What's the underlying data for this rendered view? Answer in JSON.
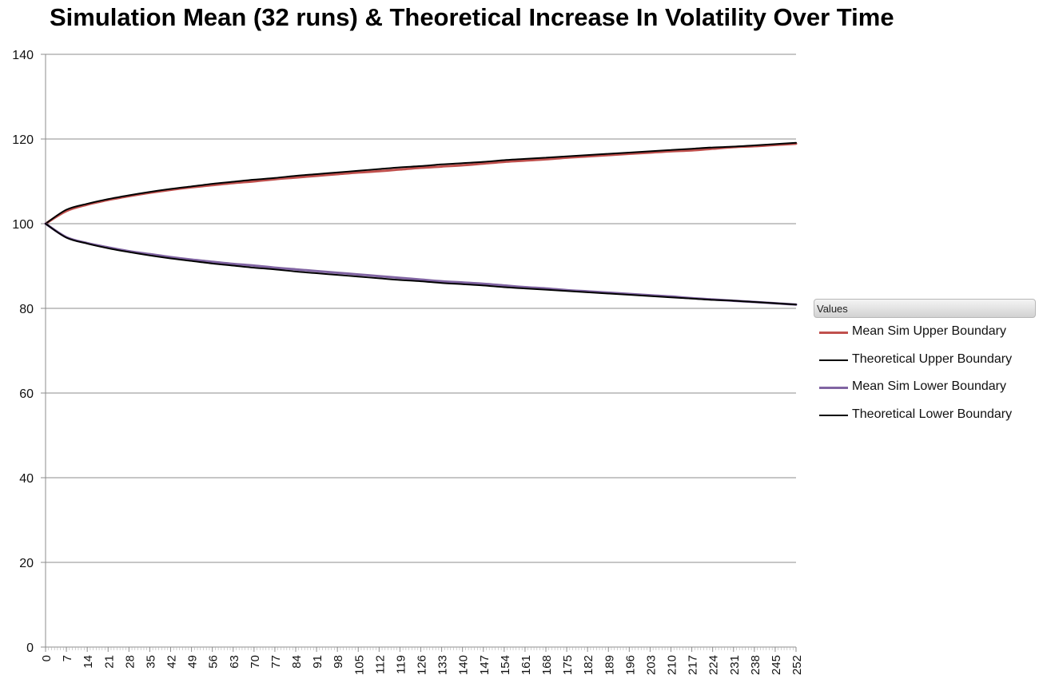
{
  "chart_data": {
    "type": "line",
    "title": "Simulation Mean (32 runs) & Theoretical Increase In Volatility Over Time",
    "xlabel": "",
    "ylabel": "",
    "ylim": [
      0,
      140
    ],
    "yticks": [
      0,
      20,
      40,
      60,
      80,
      100,
      120,
      140
    ],
    "xlim": [
      0,
      252
    ],
    "xticks": [
      0,
      7,
      14,
      21,
      28,
      35,
      42,
      49,
      56,
      63,
      70,
      77,
      84,
      91,
      98,
      105,
      112,
      119,
      126,
      133,
      140,
      147,
      154,
      161,
      168,
      175,
      182,
      189,
      196,
      203,
      210,
      217,
      224,
      231,
      238,
      245,
      252
    ],
    "grid": "horizontal",
    "legend_title": "Values",
    "legend_position": "right",
    "x": [
      0,
      7,
      14,
      21,
      28,
      35,
      42,
      49,
      56,
      63,
      70,
      77,
      84,
      91,
      98,
      105,
      112,
      119,
      126,
      133,
      140,
      147,
      154,
      161,
      168,
      175,
      182,
      189,
      196,
      203,
      210,
      217,
      224,
      231,
      238,
      245,
      252
    ],
    "series": [
      {
        "name": "Mean Sim Upper Boundary",
        "color": "#c0504d",
        "width": 3,
        "values": [
          100,
          103.0,
          104.5,
          105.6,
          106.5,
          107.3,
          108.0,
          108.6,
          109.1,
          109.6,
          110.0,
          110.5,
          110.9,
          111.3,
          111.7,
          112.1,
          112.4,
          112.8,
          113.2,
          113.5,
          113.8,
          114.2,
          114.6,
          114.9,
          115.2,
          115.6,
          115.9,
          116.2,
          116.5,
          116.8,
          117.1,
          117.3,
          117.7,
          118.1,
          118.3,
          118.6,
          118.9
        ]
      },
      {
        "name": "Theoretical Upper Boundary",
        "color": "#000000",
        "width": 2,
        "values": [
          100,
          103.3,
          104.7,
          105.8,
          106.7,
          107.5,
          108.2,
          108.8,
          109.4,
          109.9,
          110.4,
          110.8,
          111.3,
          111.7,
          112.1,
          112.5,
          112.9,
          113.3,
          113.6,
          114.0,
          114.3,
          114.6,
          115.0,
          115.3,
          115.6,
          115.9,
          116.2,
          116.5,
          116.8,
          117.1,
          117.4,
          117.7,
          118.0,
          118.2,
          118.5,
          118.8,
          119.1
        ]
      },
      {
        "name": "Mean Sim Lower Boundary",
        "color": "#8064a2",
        "width": 3,
        "values": [
          100,
          96.8,
          95.4,
          94.4,
          93.5,
          92.8,
          92.1,
          91.5,
          91.0,
          90.5,
          90.1,
          89.6,
          89.2,
          88.8,
          88.4,
          88.0,
          87.6,
          87.2,
          86.8,
          86.4,
          86.1,
          85.8,
          85.4,
          85.0,
          84.7,
          84.3,
          84.0,
          83.7,
          83.4,
          83.1,
          82.8,
          82.4,
          82.1,
          81.8,
          81.5,
          81.2,
          80.9
        ]
      },
      {
        "name": "Theoretical Lower Boundary",
        "color": "#000000",
        "width": 2,
        "values": [
          100,
          96.7,
          95.3,
          94.2,
          93.3,
          92.5,
          91.8,
          91.2,
          90.6,
          90.1,
          89.6,
          89.2,
          88.7,
          88.3,
          87.9,
          87.5,
          87.1,
          86.7,
          86.4,
          86.0,
          85.7,
          85.4,
          85.0,
          84.7,
          84.4,
          84.1,
          83.8,
          83.5,
          83.2,
          82.9,
          82.6,
          82.3,
          82.0,
          81.8,
          81.5,
          81.2,
          80.9
        ]
      }
    ]
  }
}
